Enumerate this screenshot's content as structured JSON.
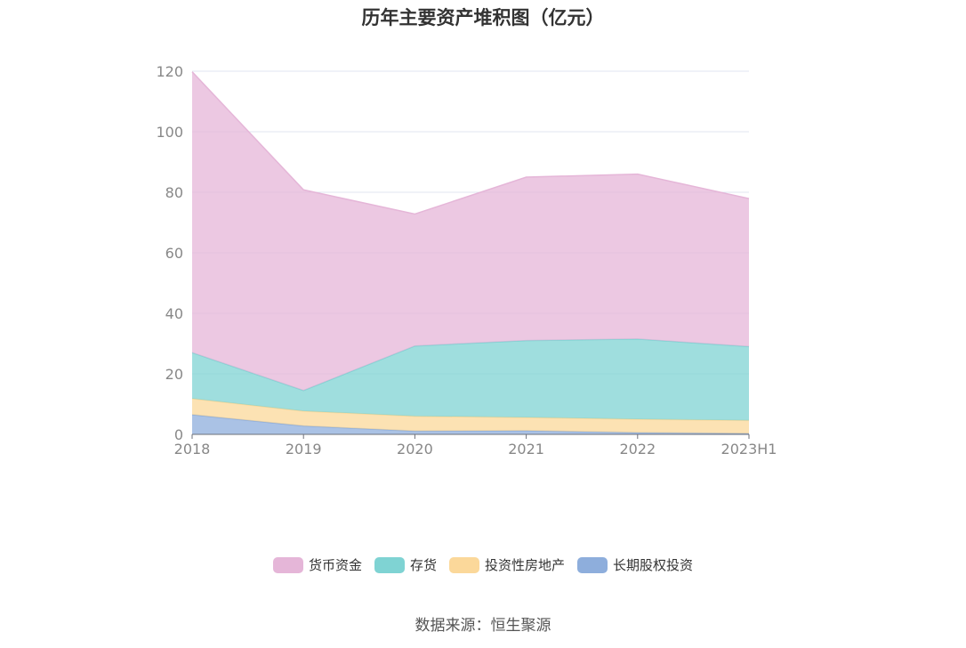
{
  "chart_data": {
    "type": "area",
    "stacked": true,
    "title": "历年主要资产堆积图（亿元）",
    "categories": [
      "2018",
      "2019",
      "2020",
      "2021",
      "2022",
      "2023H1"
    ],
    "ylim": [
      0,
      120
    ],
    "yticks": [
      "0",
      "20",
      "40",
      "60",
      "80",
      "100",
      "120"
    ],
    "grid": true,
    "legend_position": "bottom",
    "series": [
      {
        "name": "长期股权投资",
        "color": "#8eaedc",
        "values": [
          6.5,
          2.8,
          1.1,
          1.2,
          0.6,
          0.3
        ]
      },
      {
        "name": "投资性房地产",
        "color": "#fbd89a",
        "values": [
          5.3,
          4.9,
          4.9,
          4.4,
          4.4,
          4.3
        ]
      },
      {
        "name": "存货",
        "color": "#7fd3d3",
        "values": [
          15.2,
          6.8,
          23.2,
          25.4,
          26.5,
          24.4
        ]
      },
      {
        "name": "货币资金",
        "color": "#e5b6d8",
        "values": [
          92.8,
          66.3,
          43.6,
          54.0,
          54.5,
          48.9
        ]
      }
    ]
  },
  "source": "数据来源：恒生聚源"
}
